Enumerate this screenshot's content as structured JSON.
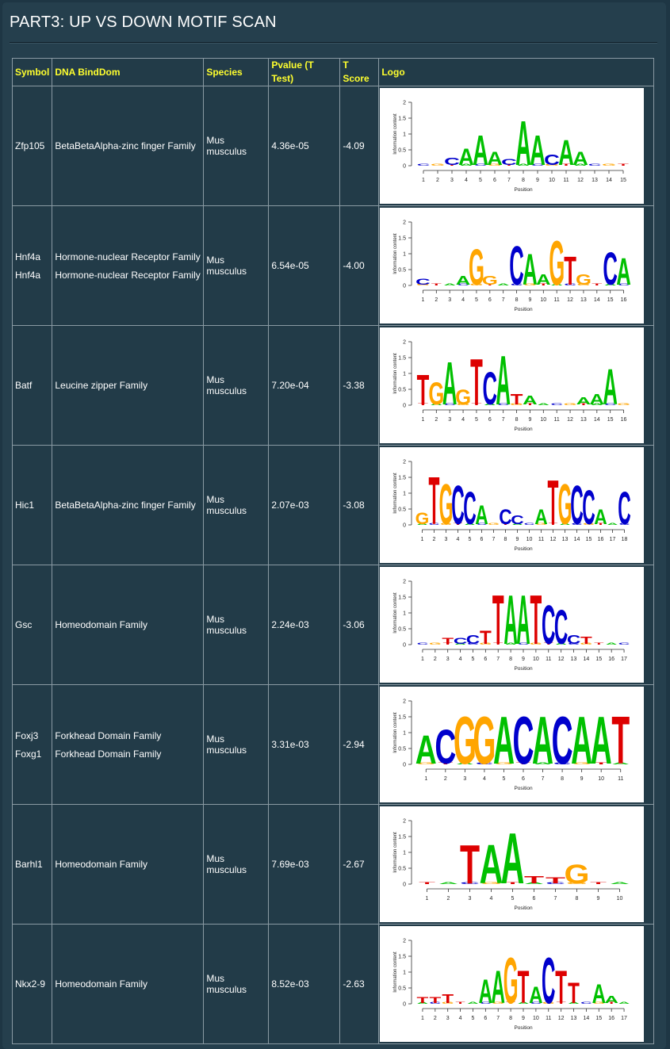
{
  "page_title": "PART3: UP VS DOWN MOTIF SCAN",
  "table": {
    "headers": {
      "symbol": "Symbol",
      "dna_binddom": "DNA BindDom",
      "species": "Species",
      "pvalue": "Pvalue (T Test)",
      "tscore": "T Score",
      "logo": "Logo"
    },
    "rows": [
      {
        "symbols": [
          "Zfp105"
        ],
        "domains": [
          "BetaBetaAlpha-zinc finger Family"
        ],
        "species": "Mus musculus",
        "pvalue": "4.36e-05",
        "tscore": "-4.09",
        "logo": {
          "length": 15,
          "letters": [
            {
              "pos": 4,
              "base": "A",
              "h": 0.55
            },
            {
              "pos": 5,
              "base": "A",
              "h": 1.0
            },
            {
              "pos": 6,
              "base": "A",
              "h": 0.45
            },
            {
              "pos": 8,
              "base": "A",
              "h": 1.5
            },
            {
              "pos": 9,
              "base": "A",
              "h": 1.0
            },
            {
              "pos": 11,
              "base": "A",
              "h": 0.85
            },
            {
              "pos": 12,
              "base": "A",
              "h": 0.45
            },
            {
              "pos": 3,
              "base": "C",
              "h": 0.25
            },
            {
              "pos": 7,
              "base": "C",
              "h": 0.2
            },
            {
              "pos": 10,
              "base": "C",
              "h": 0.35
            }
          ]
        }
      },
      {
        "symbols": [
          "Hnf4a",
          "Hnf4a"
        ],
        "domains": [
          "Hormone-nuclear Receptor Family",
          "Hormone-nuclear Receptor Family"
        ],
        "species": "Mus musculus",
        "pvalue": "6.54e-05",
        "tscore": "-4.00",
        "logo": {
          "length": 16,
          "letters": [
            {
              "pos": 1,
              "base": "C",
              "h": 0.2
            },
            {
              "pos": 4,
              "base": "A",
              "h": 0.3
            },
            {
              "pos": 5,
              "base": "G",
              "h": 1.2
            },
            {
              "pos": 6,
              "base": "G",
              "h": 0.3
            },
            {
              "pos": 8,
              "base": "C",
              "h": 1.3
            },
            {
              "pos": 9,
              "base": "A",
              "h": 1.05
            },
            {
              "pos": 10,
              "base": "A",
              "h": 0.35
            },
            {
              "pos": 11,
              "base": "G",
              "h": 1.5
            },
            {
              "pos": 12,
              "base": "T",
              "h": 0.95
            },
            {
              "pos": 13,
              "base": "G",
              "h": 0.35
            },
            {
              "pos": 15,
              "base": "C",
              "h": 1.1
            },
            {
              "pos": 16,
              "base": "A",
              "h": 0.9
            }
          ]
        }
      },
      {
        "symbols": [
          "Batf"
        ],
        "domains": [
          "Leucine zipper Family"
        ],
        "species": "Mus musculus",
        "pvalue": "7.20e-04",
        "tscore": "-3.38",
        "logo": {
          "length": 16,
          "letters": [
            {
              "pos": 1,
              "base": "T",
              "h": 1.0
            },
            {
              "pos": 2,
              "base": "G",
              "h": 0.75
            },
            {
              "pos": 3,
              "base": "A",
              "h": 1.45
            },
            {
              "pos": 4,
              "base": "G",
              "h": 0.5
            },
            {
              "pos": 5,
              "base": "T",
              "h": 1.55
            },
            {
              "pos": 6,
              "base": "C",
              "h": 1.1
            },
            {
              "pos": 7,
              "base": "A",
              "h": 1.65
            },
            {
              "pos": 8,
              "base": "T",
              "h": 0.35
            },
            {
              "pos": 9,
              "base": "A",
              "h": 0.3
            },
            {
              "pos": 13,
              "base": "A",
              "h": 0.25
            },
            {
              "pos": 14,
              "base": "A",
              "h": 0.35
            },
            {
              "pos": 15,
              "base": "A",
              "h": 1.2
            }
          ]
        }
      },
      {
        "symbols": [
          "Hic1"
        ],
        "domains": [
          "BetaBetaAlpha-zinc finger Family"
        ],
        "species": "Mus musculus",
        "pvalue": "2.07e-03",
        "tscore": "-3.08",
        "logo": {
          "length": 18,
          "letters": [
            {
              "pos": 1,
              "base": "G",
              "h": 0.4
            },
            {
              "pos": 2,
              "base": "T",
              "h": 1.6
            },
            {
              "pos": 3,
              "base": "G",
              "h": 1.35
            },
            {
              "pos": 4,
              "base": "C",
              "h": 1.3
            },
            {
              "pos": 5,
              "base": "C",
              "h": 1.1
            },
            {
              "pos": 6,
              "base": "A",
              "h": 0.65
            },
            {
              "pos": 8,
              "base": "C",
              "h": 0.5
            },
            {
              "pos": 9,
              "base": "C",
              "h": 0.3
            },
            {
              "pos": 11,
              "base": "A",
              "h": 0.5
            },
            {
              "pos": 12,
              "base": "T",
              "h": 1.5
            },
            {
              "pos": 13,
              "base": "G",
              "h": 1.35
            },
            {
              "pos": 14,
              "base": "C",
              "h": 1.3
            },
            {
              "pos": 15,
              "base": "C",
              "h": 1.15
            },
            {
              "pos": 16,
              "base": "A",
              "h": 0.5
            },
            {
              "pos": 18,
              "base": "C",
              "h": 1.1
            }
          ]
        }
      },
      {
        "symbols": [
          "Gsc"
        ],
        "domains": [
          "Homeodomain Family"
        ],
        "species": "Mus musculus",
        "pvalue": "2.24e-03",
        "tscore": "-3.06",
        "logo": {
          "length": 17,
          "letters": [
            {
              "pos": 3,
              "base": "T",
              "h": 0.2
            },
            {
              "pos": 4,
              "base": "C",
              "h": 0.2
            },
            {
              "pos": 5,
              "base": "C",
              "h": 0.3
            },
            {
              "pos": 6,
              "base": "T",
              "h": 0.45
            },
            {
              "pos": 7,
              "base": "T",
              "h": 1.65
            },
            {
              "pos": 8,
              "base": "A",
              "h": 1.65
            },
            {
              "pos": 9,
              "base": "A",
              "h": 1.65
            },
            {
              "pos": 10,
              "base": "T",
              "h": 1.65
            },
            {
              "pos": 11,
              "base": "C",
              "h": 1.3
            },
            {
              "pos": 12,
              "base": "C",
              "h": 1.15
            },
            {
              "pos": 13,
              "base": "C",
              "h": 0.3
            },
            {
              "pos": 14,
              "base": "T",
              "h": 0.25
            }
          ]
        }
      },
      {
        "symbols": [
          "Foxj3",
          "Foxg1"
        ],
        "domains": [
          "Forkhead Domain Family",
          "Forkhead Domain Family"
        ],
        "species": "Mus musculus",
        "pvalue": "3.31e-03",
        "tscore": "-2.94",
        "logo": {
          "length": 11,
          "letters": [
            {
              "pos": 1,
              "base": "A",
              "h": 0.95
            },
            {
              "pos": 2,
              "base": "C",
              "h": 1.15
            },
            {
              "pos": 3,
              "base": "G",
              "h": 1.6
            },
            {
              "pos": 4,
              "base": "G",
              "h": 1.6
            },
            {
              "pos": 5,
              "base": "A",
              "h": 1.6
            },
            {
              "pos": 6,
              "base": "C",
              "h": 1.6
            },
            {
              "pos": 7,
              "base": "A",
              "h": 1.6
            },
            {
              "pos": 8,
              "base": "C",
              "h": 1.6
            },
            {
              "pos": 9,
              "base": "A",
              "h": 1.6
            },
            {
              "pos": 10,
              "base": "A",
              "h": 1.6
            },
            {
              "pos": 11,
              "base": "T",
              "h": 1.6
            }
          ]
        }
      },
      {
        "symbols": [
          "Barhl1"
        ],
        "domains": [
          "Homeodomain Family"
        ],
        "species": "Mus musculus",
        "pvalue": "7.69e-03",
        "tscore": "-2.67",
        "logo": {
          "length": 10,
          "letters": [
            {
              "pos": 3,
              "base": "T",
              "h": 1.3
            },
            {
              "pos": 4,
              "base": "A",
              "h": 1.3
            },
            {
              "pos": 5,
              "base": "A",
              "h": 1.7
            },
            {
              "pos": 6,
              "base": "T",
              "h": 0.25
            },
            {
              "pos": 7,
              "base": "T",
              "h": 0.2
            },
            {
              "pos": 8,
              "base": "G",
              "h": 0.65
            }
          ]
        }
      },
      {
        "symbols": [
          "Nkx2-9"
        ],
        "domains": [
          "Homeodomain Family"
        ],
        "species": "Mus musculus",
        "pvalue": "8.52e-03",
        "tscore": "-2.63",
        "logo": {
          "length": 17,
          "letters": [
            {
              "pos": 1,
              "base": "T",
              "h": 0.2
            },
            {
              "pos": 2,
              "base": "T",
              "h": 0.2
            },
            {
              "pos": 3,
              "base": "T",
              "h": 0.3
            },
            {
              "pos": 6,
              "base": "A",
              "h": 0.8
            },
            {
              "pos": 7,
              "base": "A",
              "h": 1.1
            },
            {
              "pos": 8,
              "base": "G",
              "h": 1.55
            },
            {
              "pos": 9,
              "base": "T",
              "h": 1.1
            },
            {
              "pos": 10,
              "base": "A",
              "h": 0.55
            },
            {
              "pos": 11,
              "base": "C",
              "h": 1.55
            },
            {
              "pos": 12,
              "base": "T",
              "h": 1.1
            },
            {
              "pos": 13,
              "base": "T",
              "h": 0.7
            },
            {
              "pos": 15,
              "base": "A",
              "h": 0.65
            },
            {
              "pos": 16,
              "base": "A",
              "h": 0.25
            }
          ]
        }
      }
    ]
  },
  "logo_axes": {
    "ylabel": "Information content",
    "xlabel": "Position",
    "yticks": [
      "0",
      "0.5",
      "1",
      "1.5",
      "2"
    ],
    "ymax": 2
  },
  "base_colors": {
    "A": "#00c000",
    "C": "#0000cc",
    "G": "#ffa500",
    "T": "#dd0000"
  }
}
